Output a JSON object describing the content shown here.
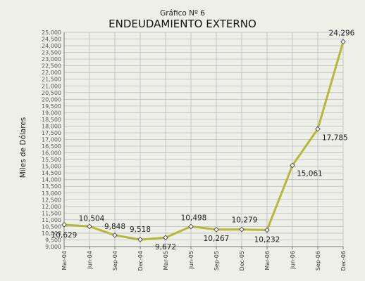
{
  "chart_data": {
    "type": "line",
    "subtitle": "Gráfico Nº 6",
    "title": "ENDEUDAMIENTO EXTERNO",
    "xlabel": "",
    "ylabel": "Miles de Dólares",
    "categories": [
      "Mar-04",
      "Jun-04",
      "Sep-04",
      "Dec-04",
      "Mar-05",
      "Jun-05",
      "Sep-05",
      "Dec-05",
      "Mar-06",
      "Jun-06",
      "Sep-06",
      "Dec-06"
    ],
    "series": [
      {
        "values": [
          10629,
          10504,
          9848,
          9518,
          9672,
          10498,
          10267,
          10279,
          10232,
          15061,
          17785,
          24296
        ]
      }
    ],
    "value_labels": [
      "10,629",
      "10,504",
      "9,848",
      "9,518",
      "9,672",
      "10,498",
      "10,267",
      "10,279",
      "10,232",
      "15,061",
      "17,785",
      "24,296"
    ],
    "ylim": [
      9000,
      25000
    ],
    "ytick_step": 500,
    "ytick_labels": [
      "9,000",
      "9,500",
      "10,000",
      "10,500",
      "11,000",
      "11,500",
      "12,000",
      "12,500",
      "13,000",
      "13,500",
      "14,000",
      "14,500",
      "15,000",
      "15,500",
      "16,000",
      "16,500",
      "17,000",
      "17,500",
      "18,000",
      "18,500",
      "19,000",
      "19,500",
      "20,000",
      "20,500",
      "21,000",
      "21,500",
      "22,000",
      "22,500",
      "23,000",
      "23,500",
      "24,000",
      "24,500",
      "25,000"
    ],
    "grid": true,
    "legend": "none",
    "colors": {
      "line": "#b5b83a",
      "grid": "#b8bcc0",
      "axis": "#777777",
      "marker_fill": "#ffffff",
      "marker_stroke": "#333333"
    }
  }
}
